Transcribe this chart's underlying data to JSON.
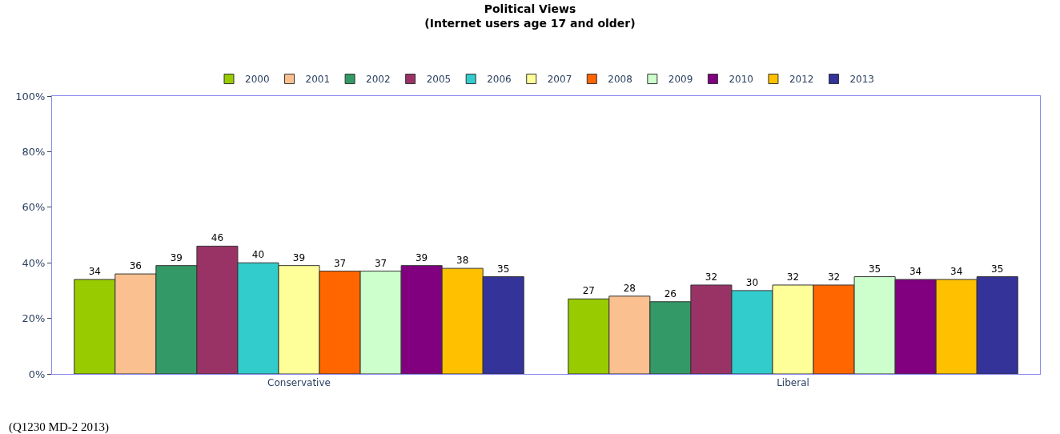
{
  "chart_data": {
    "type": "bar",
    "title": "Political Views",
    "subtitle": "(Internet users age 17 and older)",
    "categories": [
      "Conservative",
      "Liberal"
    ],
    "series": [
      {
        "name": "2000",
        "color": "#99cc00",
        "values": [
          34,
          27
        ]
      },
      {
        "name": "2001",
        "color": "#fac090",
        "values": [
          36,
          28
        ]
      },
      {
        "name": "2002",
        "color": "#339966",
        "values": [
          39,
          26
        ]
      },
      {
        "name": "2005",
        "color": "#993366",
        "values": [
          46,
          32
        ]
      },
      {
        "name": "2006",
        "color": "#33cccc",
        "values": [
          40,
          30
        ]
      },
      {
        "name": "2007",
        "color": "#ffff99",
        "values": [
          39,
          32
        ]
      },
      {
        "name": "2008",
        "color": "#ff6600",
        "values": [
          37,
          32
        ]
      },
      {
        "name": "2009",
        "color": "#ccffcc",
        "values": [
          37,
          35
        ]
      },
      {
        "name": "2010",
        "color": "#800080",
        "values": [
          39,
          34
        ]
      },
      {
        "name": "2012",
        "color": "#ffc000",
        "values": [
          38,
          34
        ]
      },
      {
        "name": "2013",
        "color": "#333399",
        "values": [
          35,
          35
        ]
      }
    ],
    "ylim": [
      0,
      100
    ],
    "yticks": [
      {
        "value": 0,
        "label": "0%"
      },
      {
        "value": 20,
        "label": "20%"
      },
      {
        "value": 40,
        "label": "40%"
      },
      {
        "value": 60,
        "label": "60%"
      },
      {
        "value": 80,
        "label": "80%"
      },
      {
        "value": 100,
        "label": "100%"
      }
    ],
    "data_labels": true,
    "legend": "top",
    "annotations": [
      "(Q1230 MD-2 2013)"
    ]
  }
}
